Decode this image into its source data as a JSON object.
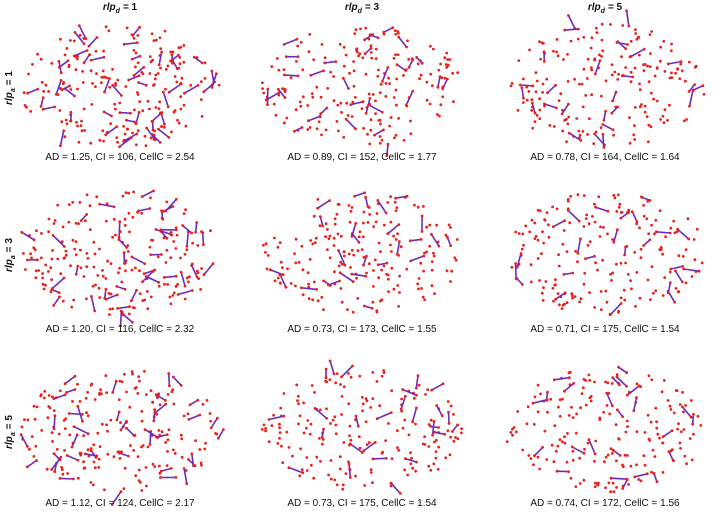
{
  "columns": [
    {
      "symbol": "rlp",
      "subscript": "d",
      "relation": "= 1"
    },
    {
      "symbol": "rlp",
      "subscript": "d",
      "relation": "= 3"
    },
    {
      "symbol": "rlp",
      "subscript": "d",
      "relation": "= 5"
    }
  ],
  "rows": [
    {
      "symbol": "rlp",
      "subscript": "a",
      "relation": "= 1"
    },
    {
      "symbol": "rlp",
      "subscript": "a",
      "relation": "= 3"
    },
    {
      "symbol": "rlp",
      "subscript": "a",
      "relation": "= 5"
    }
  ],
  "captions": [
    [
      "AD = 1.25, CI = 106, CellC = 2.54",
      "AD = 0.89, CI = 152, CellC = 1.77",
      "AD = 0.78, CI = 164, CellC = 1.64"
    ],
    [
      "AD = 1.20, CI = 116, CellC = 2.32",
      "AD = 0.73, CI = 173, CellC = 1.55",
      "AD = 0.71, CI = 175, CellC = 1.54"
    ],
    [
      "AD = 1.12, CI = 124, CellC = 2.17",
      "AD = 0.73, CI = 175, CellC = 1.54",
      "AD = 0.74, CI = 172, CellC = 1.56"
    ]
  ]
}
